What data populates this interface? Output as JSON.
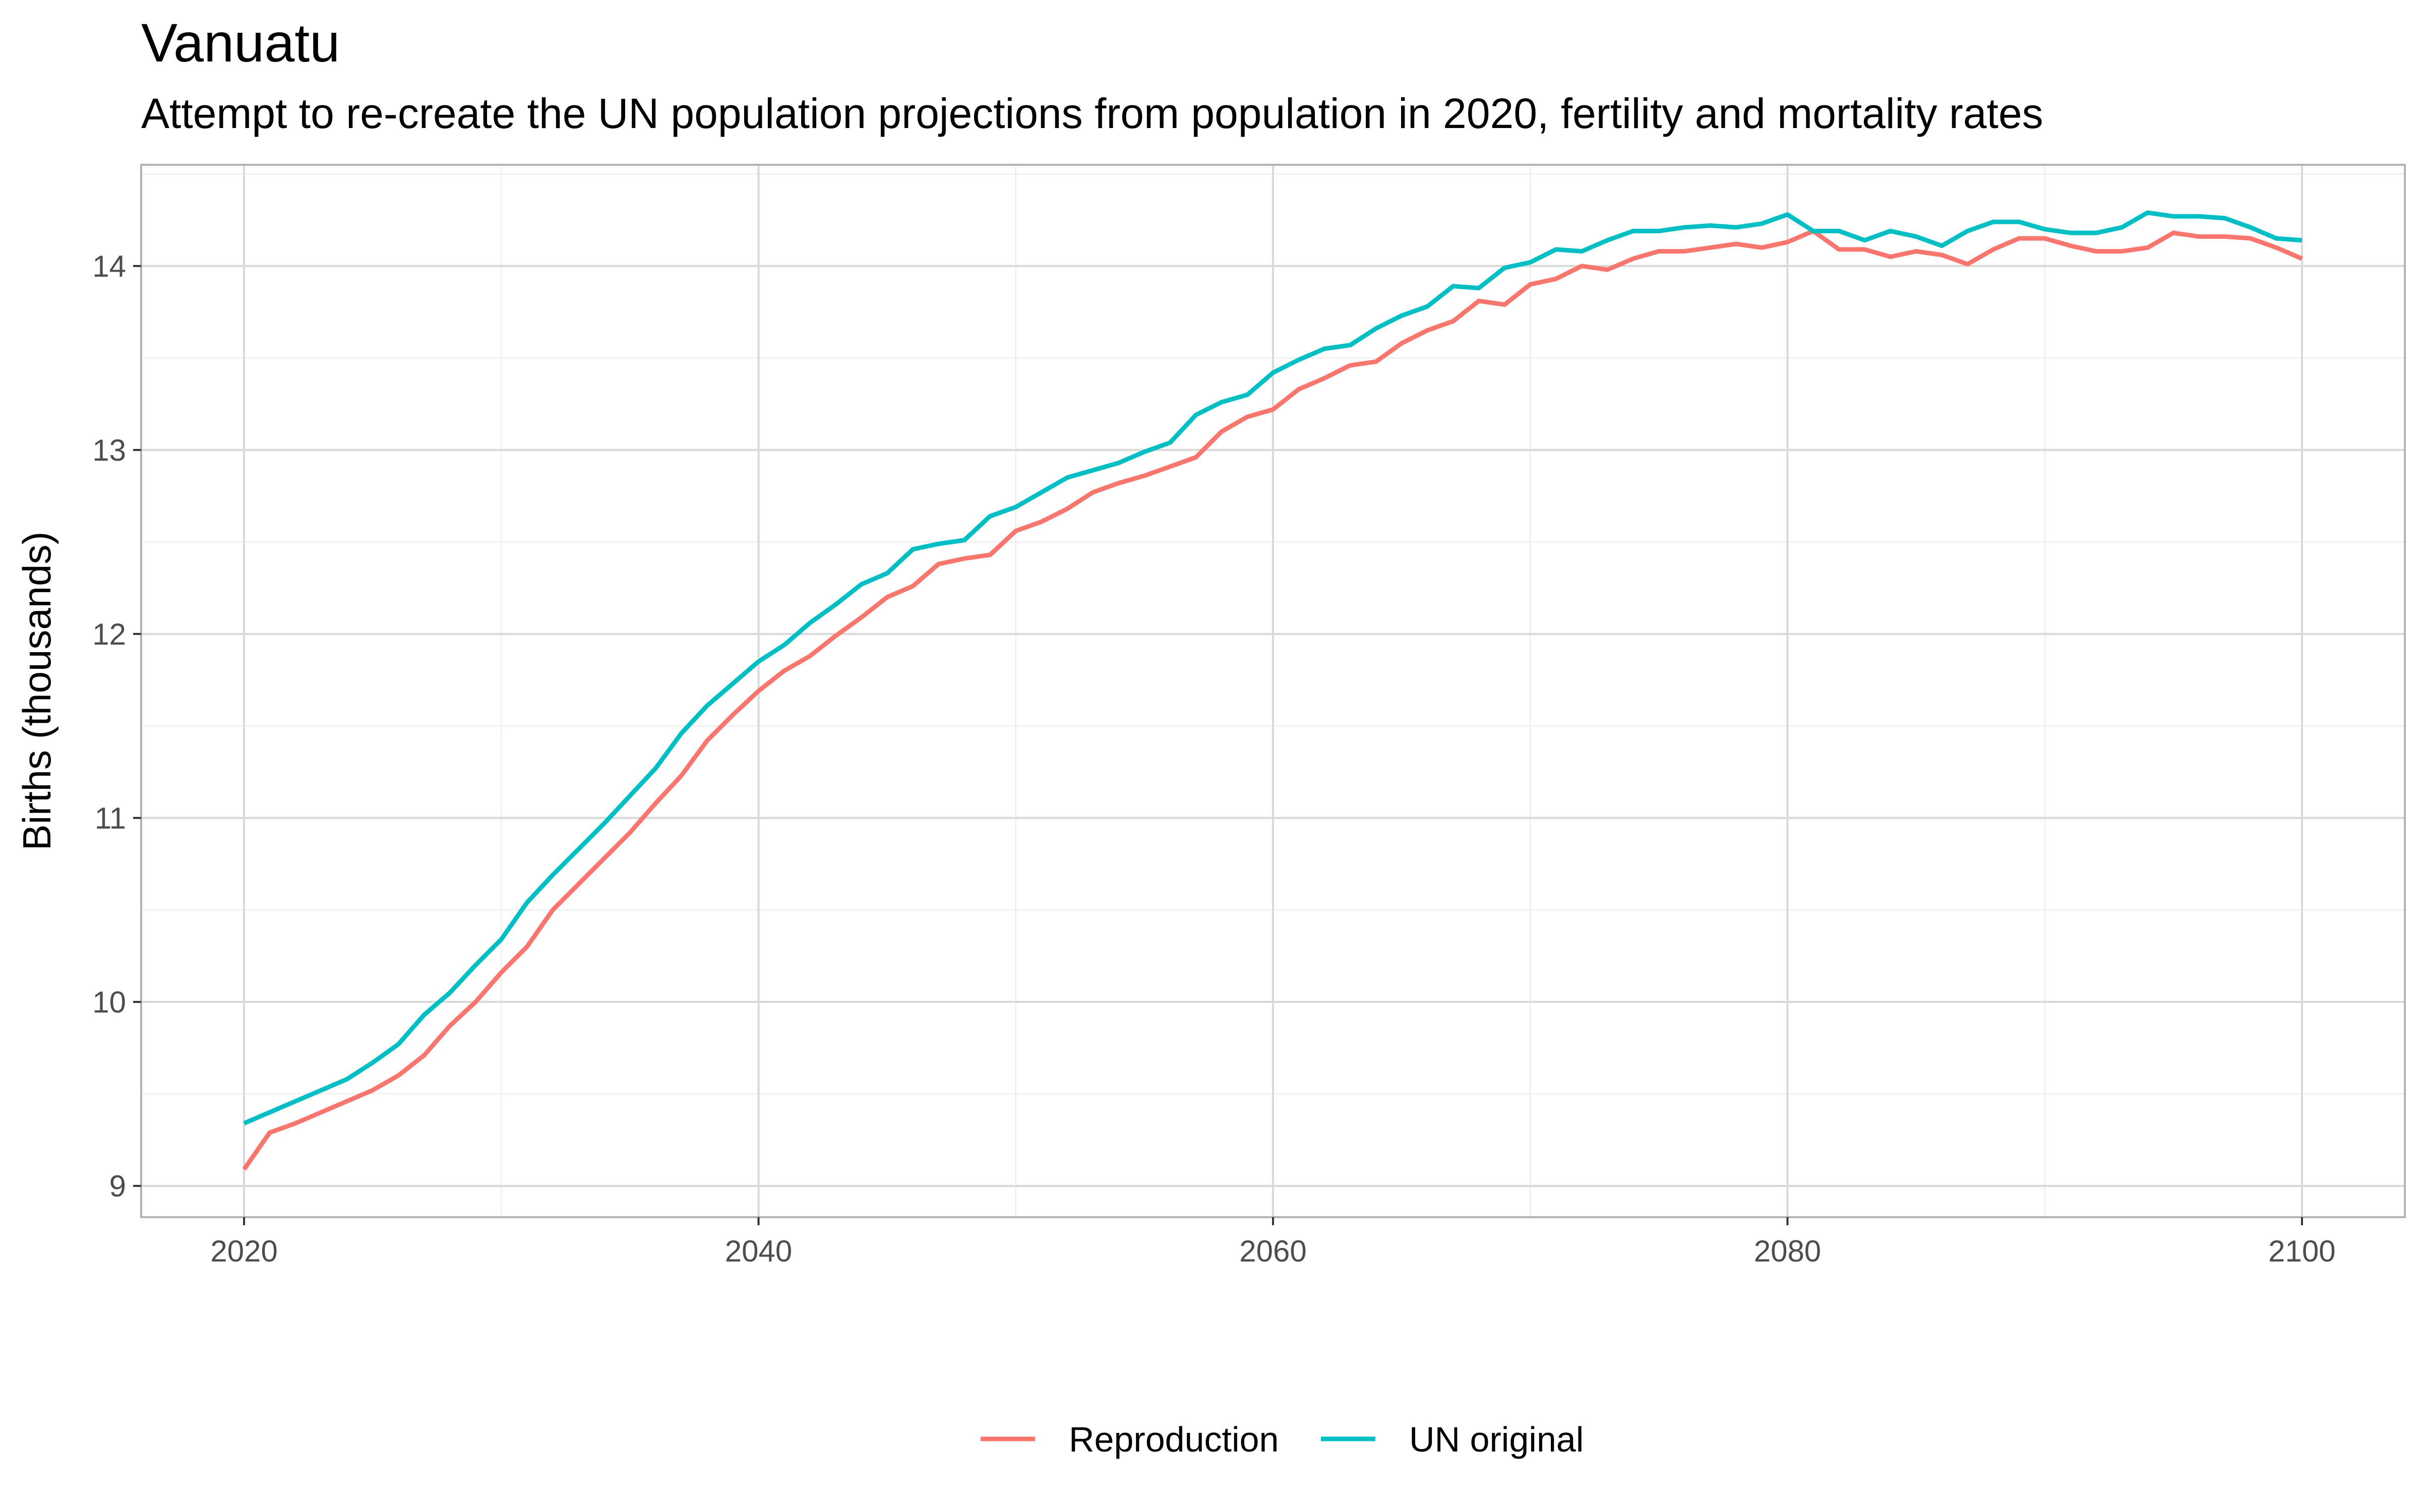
{
  "chart_data": {
    "type": "line",
    "title": "Vanuatu",
    "subtitle": "Attempt to re-create the UN population projections from population in 2020, fertility and mortality rates",
    "xlabel": "",
    "ylabel": "Births (thousands)",
    "xlim": [
      2016,
      2104
    ],
    "ylim": [
      8.83,
      14.55
    ],
    "x_ticks": [
      2020,
      2040,
      2060,
      2080,
      2100
    ],
    "y_ticks": [
      9,
      10,
      11,
      12,
      13,
      14
    ],
    "grid": true,
    "legend_position": "bottom",
    "x": [
      2020,
      2021,
      2022,
      2023,
      2024,
      2025,
      2026,
      2027,
      2028,
      2029,
      2030,
      2031,
      2032,
      2033,
      2034,
      2035,
      2036,
      2037,
      2038,
      2039,
      2040,
      2041,
      2042,
      2043,
      2044,
      2045,
      2046,
      2047,
      2048,
      2049,
      2050,
      2051,
      2052,
      2053,
      2054,
      2055,
      2056,
      2057,
      2058,
      2059,
      2060,
      2061,
      2062,
      2063,
      2064,
      2065,
      2066,
      2067,
      2068,
      2069,
      2070,
      2071,
      2072,
      2073,
      2074,
      2075,
      2076,
      2077,
      2078,
      2079,
      2080,
      2081,
      2082,
      2083,
      2084,
      2085,
      2086,
      2087,
      2088,
      2089,
      2090,
      2091,
      2092,
      2093,
      2094,
      2095,
      2096,
      2097,
      2098,
      2099,
      2100
    ],
    "series": [
      {
        "name": "Reproduction",
        "color": "#F8766D",
        "values": [
          9.09,
          9.29,
          9.34,
          9.4,
          9.46,
          9.52,
          9.6,
          9.71,
          9.87,
          10.0,
          10.16,
          10.3,
          10.5,
          10.64,
          10.78,
          10.92,
          11.08,
          11.23,
          11.42,
          11.56,
          11.69,
          11.8,
          11.88,
          11.99,
          12.09,
          12.2,
          12.26,
          12.38,
          12.41,
          12.43,
          12.56,
          12.61,
          12.68,
          12.77,
          12.82,
          12.86,
          12.91,
          12.96,
          13.1,
          13.18,
          13.22,
          13.33,
          13.39,
          13.46,
          13.48,
          13.58,
          13.65,
          13.7,
          13.81,
          13.79,
          13.9,
          13.93,
          14.0,
          13.98,
          14.04,
          14.08,
          14.08,
          14.1,
          14.12,
          14.1,
          14.13,
          14.19,
          14.09,
          14.09,
          14.05,
          14.08,
          14.06,
          14.01,
          14.09,
          14.15,
          14.15,
          14.11,
          14.08,
          14.08,
          14.1,
          14.18,
          14.16,
          14.16,
          14.15,
          14.1,
          14.04
        ]
      },
      {
        "name": "UN original",
        "color": "#00BFC4",
        "values": [
          9.34,
          9.4,
          9.46,
          9.52,
          9.58,
          9.67,
          9.77,
          9.93,
          10.05,
          10.2,
          10.34,
          10.54,
          10.69,
          10.83,
          10.97,
          11.12,
          11.27,
          11.46,
          11.61,
          11.73,
          11.85,
          11.94,
          12.06,
          12.16,
          12.27,
          12.33,
          12.46,
          12.49,
          12.51,
          12.64,
          12.69,
          12.77,
          12.85,
          12.89,
          12.93,
          12.99,
          13.04,
          13.19,
          13.26,
          13.3,
          13.42,
          13.49,
          13.55,
          13.57,
          13.66,
          13.73,
          13.78,
          13.89,
          13.88,
          13.99,
          14.02,
          14.09,
          14.08,
          14.14,
          14.19,
          14.19,
          14.21,
          14.22,
          14.21,
          14.23,
          14.28,
          14.19,
          14.19,
          14.14,
          14.19,
          14.16,
          14.11,
          14.19,
          14.24,
          14.24,
          14.2,
          14.18,
          14.18,
          14.21,
          14.29,
          14.27,
          14.27,
          14.26,
          14.21,
          14.15,
          14.14
        ]
      }
    ]
  }
}
